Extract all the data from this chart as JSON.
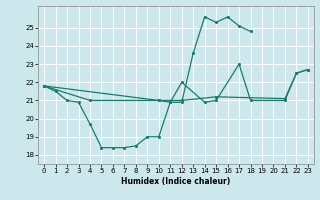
{
  "xlabel": "Humidex (Indice chaleur)",
  "xlim": [
    -0.5,
    23.5
  ],
  "ylim": [
    17.5,
    26.2
  ],
  "yticks": [
    18,
    19,
    20,
    21,
    22,
    23,
    24,
    25
  ],
  "xticks": [
    0,
    1,
    2,
    3,
    4,
    5,
    6,
    7,
    8,
    9,
    10,
    11,
    12,
    13,
    14,
    15,
    16,
    17,
    18,
    19,
    20,
    21,
    22,
    23
  ],
  "bg_color": "#cce8ec",
  "line_color": "#1a7a6e",
  "grid_color": "#ffffff",
  "line1_x": [
    0,
    1,
    2,
    3,
    4,
    5,
    6,
    7,
    8,
    9,
    10,
    11,
    12,
    13,
    14,
    15,
    16,
    17,
    18
  ],
  "line1_y": [
    21.8,
    21.5,
    21.0,
    20.9,
    19.7,
    18.4,
    18.4,
    18.4,
    18.5,
    19.0,
    19.0,
    20.9,
    20.9,
    23.6,
    25.6,
    25.3,
    25.6,
    25.1,
    24.8
  ],
  "line2_x": [
    0,
    10,
    11,
    12,
    14,
    15,
    17,
    18,
    21,
    22,
    23
  ],
  "line2_y": [
    21.8,
    21.0,
    20.9,
    22.0,
    20.9,
    21.0,
    23.0,
    21.0,
    21.0,
    22.5,
    22.7
  ],
  "line3_x": [
    0,
    4,
    10,
    12,
    15,
    21,
    22,
    23
  ],
  "line3_y": [
    21.8,
    21.0,
    21.0,
    21.0,
    21.2,
    21.1,
    22.5,
    22.7
  ]
}
